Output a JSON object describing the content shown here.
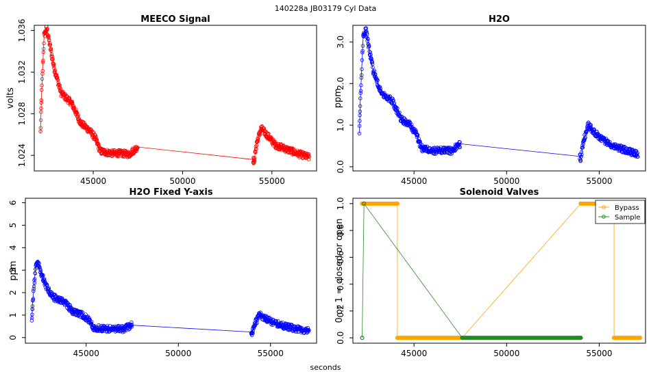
{
  "page": {
    "title": "140228a    JB03179    Cyl Data",
    "xlabel": "seconds"
  },
  "chart_data": [
    {
      "type": "scatter",
      "title": "MEECO Signal",
      "xlabel": "",
      "ylabel": "volts",
      "xlim": [
        41700,
        57500
      ],
      "ylim": [
        1.0225,
        1.0365
      ],
      "xticks": [
        45000,
        50000,
        55000
      ],
      "yticks": [
        1.024,
        1.028,
        1.032,
        1.036
      ],
      "ytick_labels": [
        "1.024",
        "1.028",
        "1.032",
        "1.036"
      ],
      "grid": false,
      "series": [
        {
          "name": "MEECO Signal",
          "color": "#ff0000",
          "x": [
            42050,
            42100,
            42250,
            42400,
            42550,
            42800,
            43200,
            43800,
            44300,
            44800,
            45100,
            45400,
            46000,
            46500,
            47000,
            47500,
            53950,
            54000,
            54150,
            54400,
            54700,
            55200,
            55800,
            56400,
            57100
          ],
          "y": [
            1.0262,
            1.0295,
            1.0355,
            1.0362,
            1.0348,
            1.0325,
            1.03,
            1.029,
            1.0271,
            1.0264,
            1.0257,
            1.0244,
            1.0242,
            1.0242,
            1.0241,
            1.0248,
            1.0236,
            1.0234,
            1.0252,
            1.0266,
            1.026,
            1.025,
            1.0246,
            1.0242,
            1.0238
          ]
        }
      ]
    },
    {
      "type": "scatter",
      "title": "H2O",
      "xlabel": "",
      "ylabel": "ppm",
      "xlim": [
        41700,
        57500
      ],
      "ylim": [
        -0.1,
        3.4
      ],
      "xticks": [
        45000,
        50000,
        55000
      ],
      "yticks": [
        0.0,
        1.0,
        2.0,
        3.0
      ],
      "ytick_labels": [
        "0.0",
        "1.0",
        "2.0",
        "3.0"
      ],
      "grid": false,
      "series": [
        {
          "name": "H2O",
          "color": "#0000ff",
          "x": [
            42050,
            42100,
            42250,
            42400,
            42550,
            42800,
            43200,
            43800,
            44300,
            44800,
            45100,
            45400,
            46000,
            46500,
            47000,
            47500,
            53950,
            54000,
            54150,
            54400,
            54700,
            55200,
            55800,
            56400,
            57100
          ],
          "y": [
            0.8,
            1.6,
            3.1,
            3.3,
            2.9,
            2.3,
            1.8,
            1.6,
            1.15,
            1.0,
            0.8,
            0.45,
            0.38,
            0.4,
            0.38,
            0.55,
            0.25,
            0.2,
            0.6,
            1.0,
            0.85,
            0.65,
            0.5,
            0.4,
            0.3
          ]
        }
      ]
    },
    {
      "type": "scatter",
      "title": "H2O Fixed Y-axis",
      "xlabel": "",
      "ylabel": "ppm",
      "xlim": [
        41700,
        57500
      ],
      "ylim": [
        -0.25,
        6.2
      ],
      "xticks": [
        45000,
        50000,
        55000
      ],
      "yticks": [
        0,
        1,
        2,
        3,
        4,
        5,
        6
      ],
      "ytick_labels": [
        "0",
        "1",
        "2",
        "3",
        "4",
        "5",
        "6"
      ],
      "grid": false,
      "series": [
        {
          "name": "H2O",
          "color": "#0000ff",
          "x": [
            42050,
            42100,
            42250,
            42400,
            42550,
            42800,
            43200,
            43800,
            44300,
            44800,
            45100,
            45400,
            46000,
            46500,
            47000,
            47500,
            53950,
            54000,
            54150,
            54400,
            54700,
            55200,
            55800,
            56400,
            57100
          ],
          "y": [
            0.8,
            1.6,
            3.1,
            3.3,
            2.9,
            2.3,
            1.8,
            1.6,
            1.15,
            1.0,
            0.8,
            0.45,
            0.38,
            0.4,
            0.38,
            0.55,
            0.25,
            0.2,
            0.6,
            1.0,
            0.85,
            0.65,
            0.5,
            0.4,
            0.3
          ]
        }
      ]
    },
    {
      "type": "line",
      "title": "Solenoid Valves",
      "xlabel": "",
      "ylabel": "0 or 1 = closed or open",
      "xlim": [
        41700,
        57500
      ],
      "ylim": [
        -0.04,
        1.04
      ],
      "xticks": [
        45000,
        50000,
        55000
      ],
      "yticks": [
        0.0,
        0.2,
        0.4,
        0.6,
        0.8,
        1.0
      ],
      "ytick_labels": [
        "0.0",
        "0.2",
        "0.4",
        "0.6",
        "0.8",
        "1.0"
      ],
      "grid": false,
      "legend": "top-right",
      "series": [
        {
          "name": "Bypass",
          "color": "#ffa500",
          "x": [
            42200,
            44100,
            44100,
            47600,
            54000,
            55800,
            55800,
            57200
          ],
          "y": [
            1,
            1,
            0,
            0,
            1,
            1,
            0,
            0
          ]
        },
        {
          "name": "Sample",
          "color": "#228b22",
          "x": [
            42200,
            42300,
            47600,
            54000
          ],
          "y": [
            0,
            1,
            0,
            0
          ]
        }
      ]
    }
  ]
}
